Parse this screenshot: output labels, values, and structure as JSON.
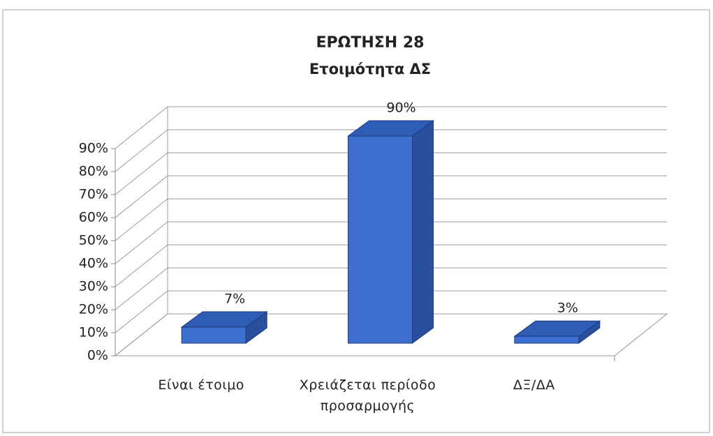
{
  "chart_data": {
    "type": "bar3d",
    "title": "ΕΡΩΤΗΣΗ 28",
    "subtitle": "Ετοιμότητα ΔΣ",
    "categories": [
      "Είναι έτοιμο",
      "Χρειάζεται περίοδο\nπροσαρμογής",
      "ΔΞ/ΔΑ"
    ],
    "values": [
      7,
      90,
      3
    ],
    "value_labels": [
      "7%",
      "90%",
      "3%"
    ],
    "color": "#3d6fd0",
    "ylim": [
      0,
      90
    ],
    "yticks": [
      {
        "value": 0,
        "label": "0%"
      },
      {
        "value": 10,
        "label": "10%"
      },
      {
        "value": 20,
        "label": "20%"
      },
      {
        "value": 30,
        "label": "30%"
      },
      {
        "value": 40,
        "label": "40%"
      },
      {
        "value": 50,
        "label": "50%"
      },
      {
        "value": 60,
        "label": "60%"
      },
      {
        "value": 70,
        "label": "70%"
      },
      {
        "value": 80,
        "label": "80%"
      },
      {
        "value": 90,
        "label": "90%"
      }
    ],
    "grid": true
  }
}
